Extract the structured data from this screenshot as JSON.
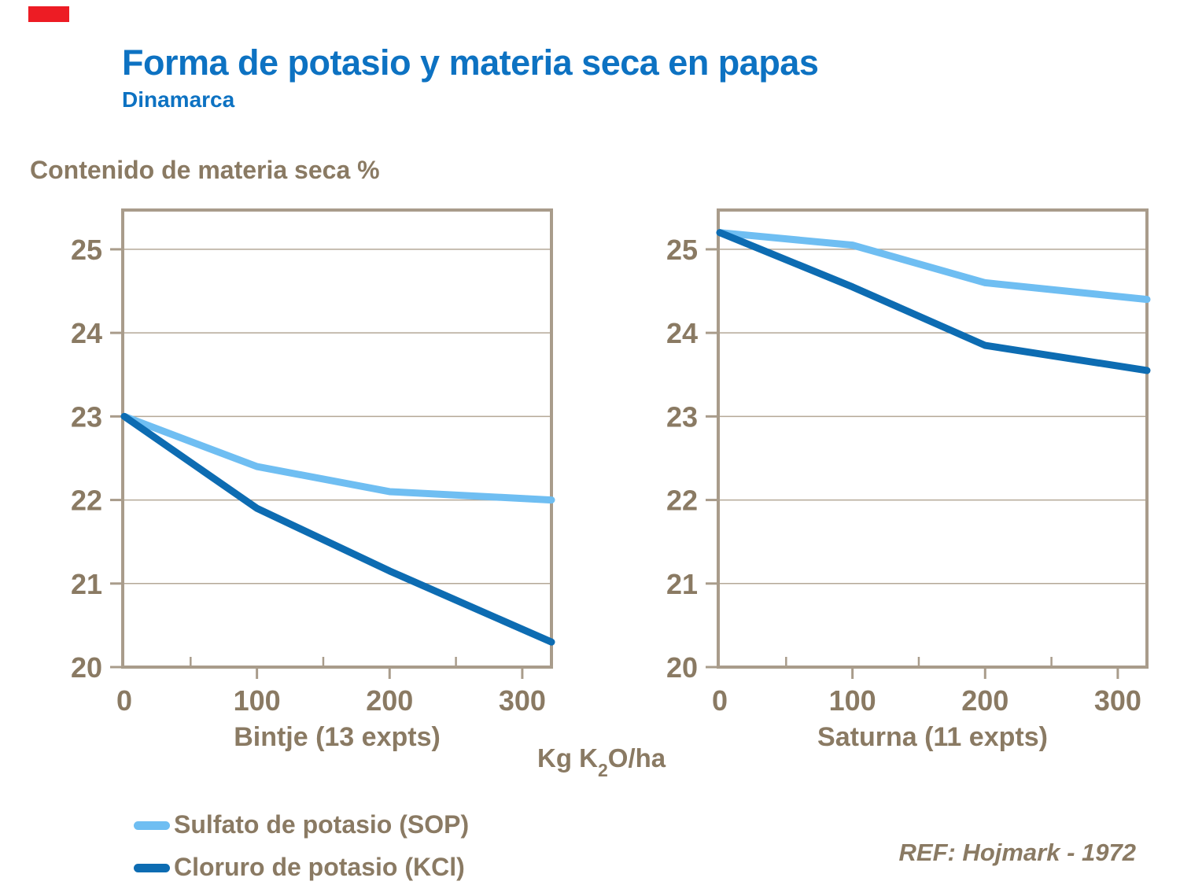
{
  "slide": {
    "title": "Forma de potasio y materia seca en papas",
    "subtitle": "Dinamarca",
    "y_axis_title": "Contenido de materia seca %",
    "x_axis_unit": {
      "pre": "Kg K",
      "sub": "2",
      "post": "O/ha"
    },
    "reference": "REF: Hojmark - 1972"
  },
  "colors": {
    "title_blue": "#0D72C2",
    "sop_blue": "#6FBEF2",
    "kcl_blue": "#0D6CB2",
    "text_brown": "#8A7A63",
    "frame_tan": "#A99C8B",
    "gridline_tan": "#B4A897",
    "red_bar": "#ED1C24"
  },
  "legend": [
    {
      "key": "sop",
      "label": "Sulfato de potasio (SOP)"
    },
    {
      "key": "kcl",
      "label": "Cloruro de potasio (KCl)"
    }
  ],
  "chart_data": [
    {
      "type": "line",
      "title": "Bintje (13 expts)",
      "x": [
        0,
        100,
        200,
        322
      ],
      "xlim": [
        0,
        322
      ],
      "ylim": [
        20,
        25.47
      ],
      "x_ticks_major": [
        0,
        100,
        200,
        300
      ],
      "x_ticks_minor": [
        50,
        150,
        250
      ],
      "y_ticks": [
        20,
        21,
        22,
        23,
        24,
        25
      ],
      "grid": "horizontal",
      "series": [
        {
          "key": "sop",
          "name": "Sulfato de potasio (SOP)",
          "values": [
            23.0,
            22.4,
            22.1,
            22.0
          ]
        },
        {
          "key": "kcl",
          "name": "Cloruro de potasio (KCl)",
          "values": [
            23.0,
            21.9,
            21.15,
            20.3
          ]
        }
      ]
    },
    {
      "type": "line",
      "title": "Saturna (11 expts)",
      "x": [
        0,
        100,
        200,
        322
      ],
      "xlim": [
        0,
        322
      ],
      "ylim": [
        20,
        25.47
      ],
      "x_ticks_major": [
        0,
        100,
        200,
        300
      ],
      "x_ticks_minor": [
        50,
        150,
        250
      ],
      "y_ticks": [
        20,
        21,
        22,
        23,
        24,
        25
      ],
      "grid": "horizontal",
      "series": [
        {
          "key": "sop",
          "name": "Sulfato de potasio (SOP)",
          "values": [
            25.2,
            25.05,
            24.6,
            24.4
          ]
        },
        {
          "key": "kcl",
          "name": "Cloruro de potasio (KCl)",
          "values": [
            25.2,
            24.55,
            23.85,
            23.55
          ]
        }
      ]
    }
  ]
}
